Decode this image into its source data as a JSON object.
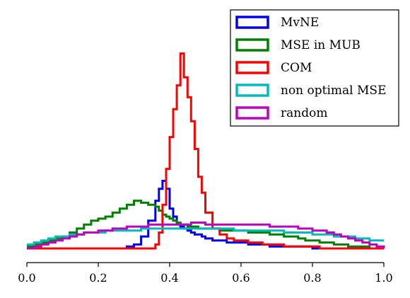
{
  "chart_data": {
    "type": "line",
    "title": "",
    "xlabel": "",
    "ylabel": "",
    "xlim": [
      0.0,
      1.0
    ],
    "ylim": [
      0,
      100
    ],
    "grid": false,
    "legend_position": "top-right",
    "x_ticks": [
      0.0,
      0.2,
      0.4,
      0.6,
      0.8,
      1.0
    ],
    "x_tick_labels": [
      "0.0",
      "0.2",
      "0.4",
      "0.6",
      "0.8",
      "1.0"
    ],
    "x": [
      0.0,
      0.02,
      0.04,
      0.06,
      0.08,
      0.1,
      0.12,
      0.14,
      0.16,
      0.18,
      0.2,
      0.22,
      0.24,
      0.26,
      0.28,
      0.3,
      0.32,
      0.34,
      0.36,
      0.37,
      0.38,
      0.39,
      0.4,
      0.41,
      0.42,
      0.43,
      0.44,
      0.45,
      0.46,
      0.47,
      0.48,
      0.49,
      0.5,
      0.52,
      0.54,
      0.56,
      0.58,
      0.6,
      0.62,
      0.64,
      0.66,
      0.68,
      0.7,
      0.72,
      0.74,
      0.76,
      0.78,
      0.8,
      0.82,
      0.84,
      0.86,
      0.88,
      0.9,
      0.92,
      0.94,
      0.96,
      0.98,
      1.0
    ],
    "series": [
      {
        "name": "MvNE",
        "color": "#0000ee",
        "values": [
          0,
          0,
          0,
          0,
          0,
          0,
          0,
          0,
          0,
          0,
          0,
          0,
          0,
          0,
          1,
          2,
          6,
          14,
          24,
          30,
          34,
          30,
          20,
          16,
          13,
          11,
          10,
          9,
          8,
          7,
          7,
          6,
          5,
          4,
          4,
          3,
          3,
          3,
          2,
          2,
          2,
          1,
          1,
          1,
          1,
          1,
          1,
          0,
          0,
          0,
          0,
          0,
          0,
          0,
          0,
          0,
          0,
          0
        ]
      },
      {
        "name": "MSE in MUB",
        "color": "#008000",
        "values": [
          1,
          2,
          3,
          4,
          5,
          6,
          8,
          10,
          12,
          14,
          15,
          16,
          18,
          20,
          22,
          24,
          23,
          22,
          21,
          19,
          17,
          16,
          15,
          14,
          13,
          12,
          12,
          11,
          11,
          11,
          10,
          10,
          10,
          10,
          9,
          9,
          9,
          9,
          8,
          8,
          8,
          7,
          7,
          6,
          6,
          5,
          4,
          4,
          3,
          3,
          2,
          2,
          1,
          1,
          1,
          0,
          0,
          0
        ]
      },
      {
        "name": "COM",
        "color": "#ff0000",
        "values": [
          0,
          0,
          0,
          0,
          0,
          0,
          0,
          0,
          0,
          0,
          0,
          0,
          0,
          0,
          0,
          0,
          0,
          0,
          2,
          8,
          22,
          40,
          56,
          70,
          82,
          98,
          86,
          76,
          64,
          50,
          36,
          28,
          18,
          10,
          7,
          5,
          4,
          4,
          3,
          3,
          2,
          2,
          2,
          1,
          1,
          1,
          1,
          1,
          0,
          0,
          0,
          0,
          0,
          0,
          0,
          0,
          0,
          0
        ]
      },
      {
        "name": "non optimal MSE",
        "color": "#00bbbb",
        "values": [
          2,
          3,
          4,
          5,
          6,
          6,
          7,
          7,
          8,
          8,
          8,
          9,
          9,
          9,
          9,
          9,
          10,
          10,
          10,
          10,
          10,
          10,
          10,
          10,
          10,
          10,
          10,
          10,
          10,
          10,
          10,
          10,
          10,
          10,
          10,
          10,
          9,
          9,
          9,
          9,
          9,
          9,
          9,
          8,
          8,
          8,
          8,
          7,
          7,
          7,
          6,
          6,
          6,
          5,
          5,
          4,
          4,
          4
        ]
      },
      {
        "name": "random",
        "color": "#c000c0",
        "values": [
          0,
          1,
          2,
          3,
          4,
          5,
          6,
          7,
          8,
          8,
          9,
          9,
          10,
          10,
          11,
          11,
          11,
          12,
          12,
          12,
          12,
          12,
          12,
          12,
          12,
          12,
          12,
          12,
          13,
          13,
          13,
          13,
          12,
          12,
          12,
          12,
          12,
          12,
          12,
          12,
          12,
          11,
          11,
          11,
          11,
          10,
          10,
          9,
          9,
          8,
          7,
          6,
          5,
          4,
          3,
          2,
          1,
          0
        ]
      }
    ]
  }
}
